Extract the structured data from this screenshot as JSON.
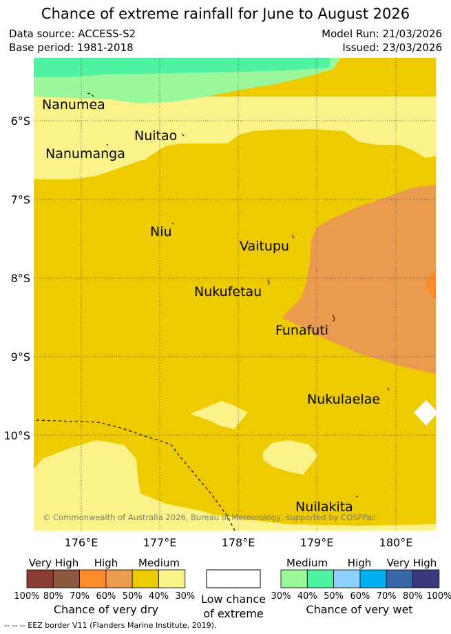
{
  "header": {
    "title": "Chance of extreme rainfall for June to August 2026",
    "data_source": "Data source: ACCESS-S2",
    "base_period": "Base period: 1981-2018",
    "model_run": "Model Run: 21/03/2026",
    "issued": "Issued: 23/03/2026"
  },
  "map": {
    "lat_labels": [
      "6°S",
      "7°S",
      "8°S",
      "9°S",
      "10°S"
    ],
    "lon_labels": [
      "176°E",
      "177°E",
      "178°E",
      "179°E",
      "180°E"
    ],
    "places": {
      "nanumea": "Nanumea",
      "nuitao": "Nuitao",
      "nanumanga": "Nanumanga",
      "niu": "Niu",
      "vaitupu": "Vaitupu",
      "nukufetau": "Nukufetau",
      "funafuti": "Funafuti",
      "nukulaelae": "Nukulaelae",
      "nuilakita": "Nuilakita"
    },
    "copyright": "© Commonwealth of Australia 2026, Bureau of Meteorology, supported by COSPPac"
  },
  "legend": {
    "dry": {
      "categories": [
        "Very High",
        "High",
        "Medium"
      ],
      "ticks": [
        "100%",
        "80%",
        "70%",
        "60%",
        "50%",
        "40%",
        "30%"
      ],
      "caption": "Chance of very dry",
      "colors": [
        "#8b3a34",
        "#8b5a3f",
        "#ff8c2a",
        "#ea9b4d",
        "#eecb00",
        "#fbf38a"
      ]
    },
    "low": {
      "caption_line1": "Low chance",
      "caption_line2": "of extreme",
      "color": "#ffffff"
    },
    "wet": {
      "categories": [
        "Medium",
        "High",
        "Very High"
      ],
      "ticks": [
        "30%",
        "40%",
        "50%",
        "60%",
        "70%",
        "80%",
        "100%"
      ],
      "caption": "Chance of very wet",
      "colors": [
        "#9bf89a",
        "#4ff2a0",
        "#8dd0fb",
        "#00b0ef",
        "#3a67a8",
        "#3b3b7c"
      ]
    }
  },
  "footer": {
    "eez_note": "--  --  -- EEZ border V11 (Flanders Marine Institute, 2019)."
  }
}
